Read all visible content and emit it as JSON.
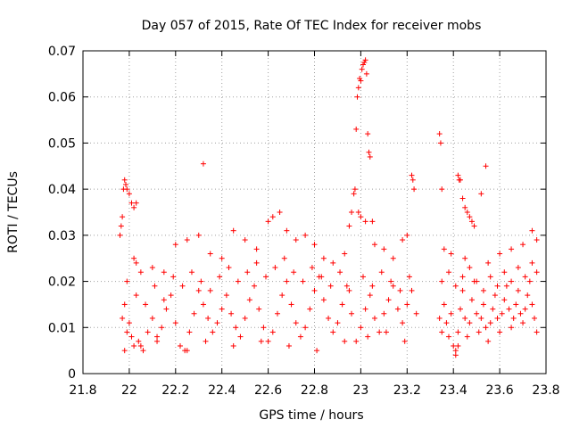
{
  "chart_data": {
    "type": "scatter",
    "title": "Day 057 of 2015, Rate Of TEC Index for receiver mobs",
    "xlabel": "GPS time / hours",
    "ylabel": "ROTI / TECUs",
    "xlim": [
      21.8,
      23.8
    ],
    "ylim": [
      0,
      0.07
    ],
    "xticks": [
      "21.8",
      "22",
      "22.2",
      "22.4",
      "22.6",
      "22.8",
      "23",
      "23.2",
      "23.4",
      "23.6",
      "23.8"
    ],
    "yticks": [
      "0",
      "0.01",
      "0.02",
      "0.03",
      "0.04",
      "0.05",
      "0.06",
      "0.07"
    ],
    "grid": true,
    "marker": "+",
    "series_color": "#ff0000",
    "series": [
      {
        "name": "ROTI",
        "points": [
          [
            21.96,
            0.03
          ],
          [
            21.965,
            0.032
          ],
          [
            21.97,
            0.034
          ],
          [
            21.975,
            0.04
          ],
          [
            21.98,
            0.042
          ],
          [
            21.985,
            0.041
          ],
          [
            21.99,
            0.04
          ],
          [
            22.0,
            0.039
          ],
          [
            22.01,
            0.037
          ],
          [
            22.02,
            0.036
          ],
          [
            22.03,
            0.037
          ],
          [
            22.32,
            0.0455
          ],
          [
            22.97,
            0.039
          ],
          [
            22.975,
            0.04
          ],
          [
            22.98,
            0.053
          ],
          [
            22.985,
            0.06
          ],
          [
            22.99,
            0.062
          ],
          [
            22.995,
            0.064
          ],
          [
            23.0,
            0.0635
          ],
          [
            23.005,
            0.066
          ],
          [
            23.01,
            0.067
          ],
          [
            23.015,
            0.0675
          ],
          [
            23.02,
            0.068
          ],
          [
            23.025,
            0.065
          ],
          [
            23.03,
            0.052
          ],
          [
            23.035,
            0.048
          ],
          [
            23.04,
            0.047
          ],
          [
            22.95,
            0.032
          ],
          [
            22.96,
            0.035
          ],
          [
            22.99,
            0.035
          ],
          [
            23.0,
            0.034
          ],
          [
            23.02,
            0.033
          ],
          [
            23.05,
            0.033
          ],
          [
            23.22,
            0.043
          ],
          [
            23.225,
            0.042
          ],
          [
            23.23,
            0.04
          ],
          [
            23.34,
            0.052
          ],
          [
            23.345,
            0.05
          ],
          [
            23.35,
            0.04
          ],
          [
            23.42,
            0.043
          ],
          [
            23.425,
            0.042
          ],
          [
            23.43,
            0.042
          ],
          [
            23.44,
            0.038
          ],
          [
            23.45,
            0.036
          ],
          [
            23.46,
            0.035
          ],
          [
            23.47,
            0.034
          ],
          [
            23.48,
            0.033
          ],
          [
            23.49,
            0.032
          ],
          [
            23.52,
            0.039
          ],
          [
            23.54,
            0.045
          ],
          [
            22.02,
            0.025
          ],
          [
            22.03,
            0.024
          ],
          [
            22.05,
            0.022
          ],
          [
            22.1,
            0.023
          ],
          [
            22.15,
            0.022
          ],
          [
            22.2,
            0.028
          ],
          [
            22.25,
            0.029
          ],
          [
            22.3,
            0.03
          ],
          [
            22.35,
            0.026
          ],
          [
            22.4,
            0.025
          ],
          [
            22.45,
            0.031
          ],
          [
            22.5,
            0.029
          ],
          [
            22.55,
            0.027
          ],
          [
            22.6,
            0.033
          ],
          [
            22.62,
            0.034
          ],
          [
            22.65,
            0.035
          ],
          [
            22.68,
            0.031
          ],
          [
            22.72,
            0.029
          ],
          [
            22.76,
            0.03
          ],
          [
            22.8,
            0.028
          ],
          [
            22.84,
            0.025
          ],
          [
            22.88,
            0.024
          ],
          [
            22.93,
            0.026
          ],
          [
            23.06,
            0.028
          ],
          [
            23.1,
            0.027
          ],
          [
            23.14,
            0.025
          ],
          [
            23.18,
            0.029
          ],
          [
            23.2,
            0.03
          ],
          [
            23.36,
            0.027
          ],
          [
            23.39,
            0.026
          ],
          [
            23.45,
            0.025
          ],
          [
            23.55,
            0.024
          ],
          [
            23.6,
            0.026
          ],
          [
            23.65,
            0.027
          ],
          [
            23.7,
            0.028
          ],
          [
            23.74,
            0.031
          ],
          [
            23.76,
            0.029
          ],
          [
            21.97,
            0.012
          ],
          [
            21.98,
            0.015
          ],
          [
            21.99,
            0.009
          ],
          [
            22.0,
            0.011
          ],
          [
            22.01,
            0.008
          ],
          [
            22.02,
            0.006
          ],
          [
            22.04,
            0.007
          ],
          [
            22.06,
            0.005
          ],
          [
            22.08,
            0.009
          ],
          [
            22.1,
            0.012
          ],
          [
            22.12,
            0.008
          ],
          [
            22.14,
            0.01
          ],
          [
            22.16,
            0.014
          ],
          [
            22.18,
            0.017
          ],
          [
            22.2,
            0.011
          ],
          [
            22.22,
            0.006
          ],
          [
            22.24,
            0.005
          ],
          [
            22.26,
            0.009
          ],
          [
            22.28,
            0.013
          ],
          [
            22.3,
            0.018
          ],
          [
            22.32,
            0.015
          ],
          [
            22.34,
            0.012
          ],
          [
            22.36,
            0.009
          ],
          [
            22.38,
            0.011
          ],
          [
            22.4,
            0.014
          ],
          [
            22.42,
            0.017
          ],
          [
            22.44,
            0.013
          ],
          [
            22.46,
            0.01
          ],
          [
            22.48,
            0.008
          ],
          [
            22.5,
            0.012
          ],
          [
            22.52,
            0.016
          ],
          [
            22.54,
            0.019
          ],
          [
            22.56,
            0.014
          ],
          [
            22.58,
            0.01
          ],
          [
            22.6,
            0.007
          ],
          [
            22.62,
            0.009
          ],
          [
            22.64,
            0.013
          ],
          [
            22.66,
            0.017
          ],
          [
            22.68,
            0.02
          ],
          [
            22.7,
            0.015
          ],
          [
            22.72,
            0.011
          ],
          [
            22.74,
            0.008
          ],
          [
            22.76,
            0.01
          ],
          [
            22.78,
            0.014
          ],
          [
            22.8,
            0.018
          ],
          [
            22.82,
            0.021
          ],
          [
            22.84,
            0.016
          ],
          [
            22.86,
            0.012
          ],
          [
            22.88,
            0.009
          ],
          [
            22.9,
            0.011
          ],
          [
            22.92,
            0.015
          ],
          [
            22.94,
            0.019
          ],
          [
            22.96,
            0.013
          ],
          [
            22.98,
            0.007
          ],
          [
            23.0,
            0.01
          ],
          [
            23.02,
            0.014
          ],
          [
            23.04,
            0.017
          ],
          [
            23.06,
            0.012
          ],
          [
            23.08,
            0.009
          ],
          [
            23.1,
            0.013
          ],
          [
            23.12,
            0.016
          ],
          [
            23.14,
            0.019
          ],
          [
            23.16,
            0.014
          ],
          [
            23.18,
            0.011
          ],
          [
            23.2,
            0.015
          ],
          [
            23.22,
            0.018
          ],
          [
            23.24,
            0.013
          ],
          [
            21.99,
            0.02
          ],
          [
            22.03,
            0.017
          ],
          [
            22.07,
            0.015
          ],
          [
            22.11,
            0.019
          ],
          [
            22.15,
            0.016
          ],
          [
            22.19,
            0.021
          ],
          [
            22.23,
            0.019
          ],
          [
            22.27,
            0.022
          ],
          [
            22.31,
            0.02
          ],
          [
            22.35,
            0.018
          ],
          [
            22.39,
            0.021
          ],
          [
            22.43,
            0.023
          ],
          [
            22.47,
            0.02
          ],
          [
            22.51,
            0.022
          ],
          [
            22.55,
            0.024
          ],
          [
            22.59,
            0.021
          ],
          [
            22.63,
            0.023
          ],
          [
            22.67,
            0.025
          ],
          [
            22.71,
            0.022
          ],
          [
            22.75,
            0.02
          ],
          [
            22.79,
            0.023
          ],
          [
            22.83,
            0.021
          ],
          [
            22.87,
            0.019
          ],
          [
            22.91,
            0.022
          ],
          [
            22.95,
            0.018
          ],
          [
            23.01,
            0.021
          ],
          [
            23.05,
            0.019
          ],
          [
            23.09,
            0.022
          ],
          [
            23.13,
            0.02
          ],
          [
            23.17,
            0.018
          ],
          [
            23.21,
            0.021
          ],
          [
            21.98,
            0.005
          ],
          [
            22.05,
            0.006
          ],
          [
            22.12,
            0.007
          ],
          [
            22.25,
            0.005
          ],
          [
            22.33,
            0.007
          ],
          [
            22.45,
            0.006
          ],
          [
            22.57,
            0.007
          ],
          [
            22.69,
            0.006
          ],
          [
            22.81,
            0.005
          ],
          [
            22.93,
            0.007
          ],
          [
            23.03,
            0.008
          ],
          [
            23.11,
            0.009
          ],
          [
            23.19,
            0.007
          ],
          [
            23.34,
            0.012
          ],
          [
            23.35,
            0.009
          ],
          [
            23.36,
            0.015
          ],
          [
            23.37,
            0.011
          ],
          [
            23.38,
            0.008
          ],
          [
            23.39,
            0.013
          ],
          [
            23.4,
            0.006
          ],
          [
            23.41,
            0.005
          ],
          [
            23.42,
            0.009
          ],
          [
            23.43,
            0.014
          ],
          [
            23.44,
            0.018
          ],
          [
            23.45,
            0.012
          ],
          [
            23.46,
            0.008
          ],
          [
            23.47,
            0.011
          ],
          [
            23.48,
            0.016
          ],
          [
            23.49,
            0.02
          ],
          [
            23.5,
            0.013
          ],
          [
            23.51,
            0.009
          ],
          [
            23.52,
            0.012
          ],
          [
            23.53,
            0.015
          ],
          [
            23.54,
            0.01
          ],
          [
            23.55,
            0.007
          ],
          [
            23.56,
            0.011
          ],
          [
            23.57,
            0.014
          ],
          [
            23.58,
            0.017
          ],
          [
            23.59,
            0.012
          ],
          [
            23.6,
            0.009
          ],
          [
            23.61,
            0.013
          ],
          [
            23.62,
            0.016
          ],
          [
            23.63,
            0.019
          ],
          [
            23.64,
            0.014
          ],
          [
            23.65,
            0.01
          ],
          [
            23.66,
            0.012
          ],
          [
            23.67,
            0.015
          ],
          [
            23.68,
            0.018
          ],
          [
            23.69,
            0.013
          ],
          [
            23.7,
            0.011
          ],
          [
            23.71,
            0.014
          ],
          [
            23.72,
            0.017
          ],
          [
            23.73,
            0.02
          ],
          [
            23.74,
            0.015
          ],
          [
            23.75,
            0.012
          ],
          [
            23.76,
            0.022
          ],
          [
            23.76,
            0.009
          ],
          [
            23.35,
            0.02
          ],
          [
            23.38,
            0.022
          ],
          [
            23.41,
            0.019
          ],
          [
            23.44,
            0.021
          ],
          [
            23.47,
            0.023
          ],
          [
            23.5,
            0.02
          ],
          [
            23.53,
            0.018
          ],
          [
            23.56,
            0.021
          ],
          [
            23.59,
            0.019
          ],
          [
            23.62,
            0.022
          ],
          [
            23.65,
            0.02
          ],
          [
            23.68,
            0.023
          ],
          [
            23.71,
            0.021
          ],
          [
            23.74,
            0.024
          ],
          [
            23.41,
            0.004
          ],
          [
            23.42,
            0.006
          ]
        ]
      }
    ]
  }
}
